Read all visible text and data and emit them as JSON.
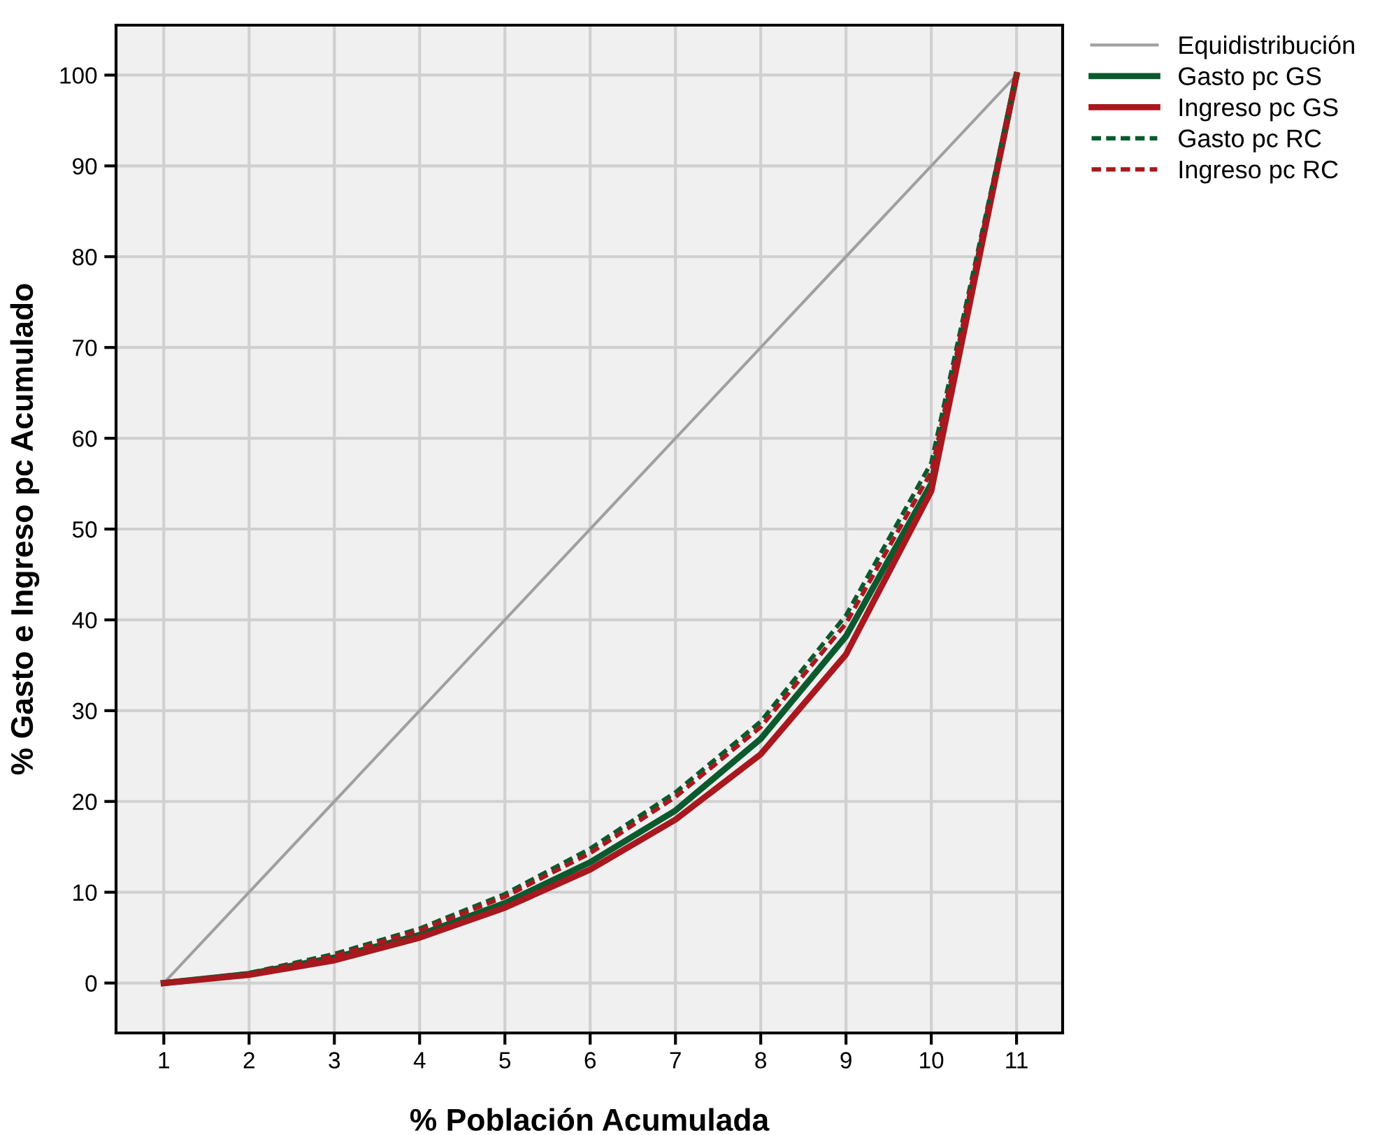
{
  "chart_data": {
    "type": "line",
    "xlabel": "% Población Acumulada",
    "ylabel": "% Gasto e Ingreso pc Acumulado",
    "categories": [
      "1",
      "2",
      "3",
      "4",
      "5",
      "6",
      "7",
      "8",
      "9",
      "10",
      "11"
    ],
    "series": [
      {
        "name": "Equidistribución",
        "color": "#a0a0a0",
        "line_style": "solid",
        "values": [
          0,
          10,
          20,
          30,
          40,
          50,
          60,
          70,
          80,
          90,
          100
        ]
      },
      {
        "name": "Gasto pc GS",
        "color": "#0b5a2e",
        "line_style": "solid",
        "values": [
          0,
          1,
          2.8,
          5.3,
          8.8,
          13.3,
          19,
          26.9,
          38.2,
          55,
          100
        ]
      },
      {
        "name": "Ingreso pc GS",
        "color": "#a8181e",
        "line_style": "solid",
        "values": [
          0,
          0.9,
          2.5,
          5,
          8.3,
          12.5,
          18,
          25.2,
          36.2,
          54.2,
          100
        ]
      },
      {
        "name": "Gasto pc RC",
        "color": "#0b5a2e",
        "line_style": "dashed",
        "values": [
          0,
          1.1,
          3.2,
          6,
          9.8,
          14.8,
          21,
          28.8,
          40.5,
          57.3,
          100
        ]
      },
      {
        "name": "Ingreso pc RC",
        "color": "#a8181e",
        "line_style": "dashed",
        "values": [
          0,
          1,
          3,
          5.8,
          9.5,
          14.3,
          20.5,
          28.2,
          39.6,
          56.3,
          100
        ]
      }
    ],
    "ylim": [
      -5.5,
      105.5
    ],
    "yticks": [
      0,
      10,
      20,
      30,
      40,
      50,
      60,
      70,
      80,
      90,
      100
    ],
    "grid": true,
    "legend": "top right",
    "marker": "none"
  }
}
